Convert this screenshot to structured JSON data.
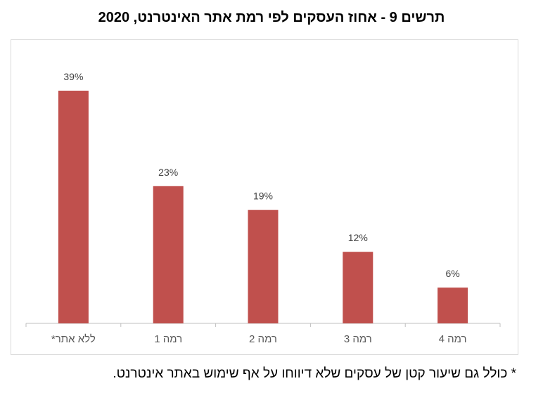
{
  "title": "תרשים 9 - אחוז העסקים לפי רמת אתר האינטרנט, 2020",
  "footnote": "* כולל גם שיעור קטן של עסקים שלא דיווחו על אף שימוש באתר אינטרנט.",
  "colors": {
    "bar": "#c0504d",
    "axis": "#bfbfbf",
    "label": "#404040",
    "tick": "#595959"
  },
  "chart_data": {
    "type": "bar",
    "categories": [
      "ללא אתר*",
      "רמה 1",
      "רמה 2",
      "רמה 3",
      "רמה 4"
    ],
    "values": [
      39,
      23,
      19,
      12,
      6
    ],
    "data_labels": [
      "39%",
      "23%",
      "19%",
      "12%",
      "6%"
    ],
    "ylim": [
      0,
      45
    ],
    "grid": false,
    "legend": "none"
  }
}
